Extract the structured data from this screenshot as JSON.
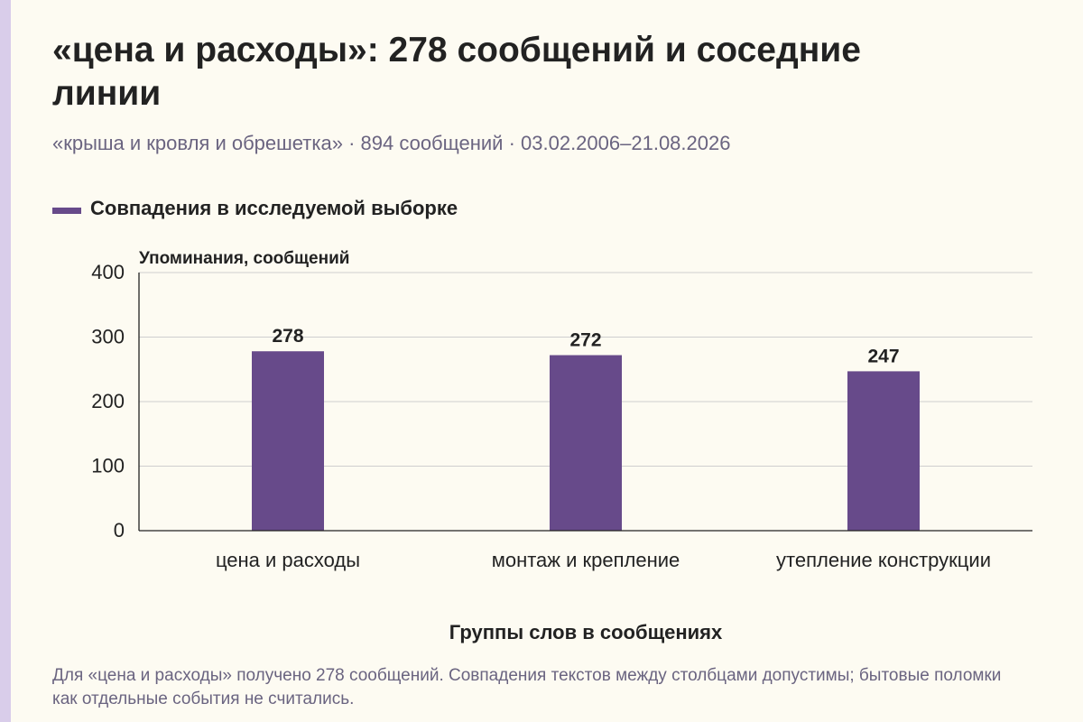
{
  "page": {
    "title": "«цена и расходы»: 278 сообщений и соседние линии",
    "subtitle": "«крыша и кровля и обрешетка» · 894 сообщений · 03.02.2006–21.08.2026",
    "caption": "Для «цена и расходы» получено 278 сообщений. Совпадения текстов между столбцами допустимы; бытовые поломки как отдельные события не считались."
  },
  "colors": {
    "bar": "#674a8a",
    "grid": "#cfcfcf",
    "accent_strip": "#d9cdea"
  },
  "chart_data": {
    "type": "bar",
    "categories": [
      "цена и расходы",
      "монтаж и крепление",
      "утепление конструкции"
    ],
    "series": [
      {
        "name": "Совпадения в исследуемой выборке",
        "values": [
          278,
          272,
          247
        ]
      }
    ],
    "data_labels": [
      "278",
      "272",
      "247"
    ],
    "xlabel": "Группы слов в сообщениях",
    "ylabel": "Упоминания, сообщений",
    "ylim": [
      0,
      400
    ],
    "yticks": [
      0,
      100,
      200,
      300,
      400
    ],
    "grid": true,
    "legend_position": "top-left"
  }
}
